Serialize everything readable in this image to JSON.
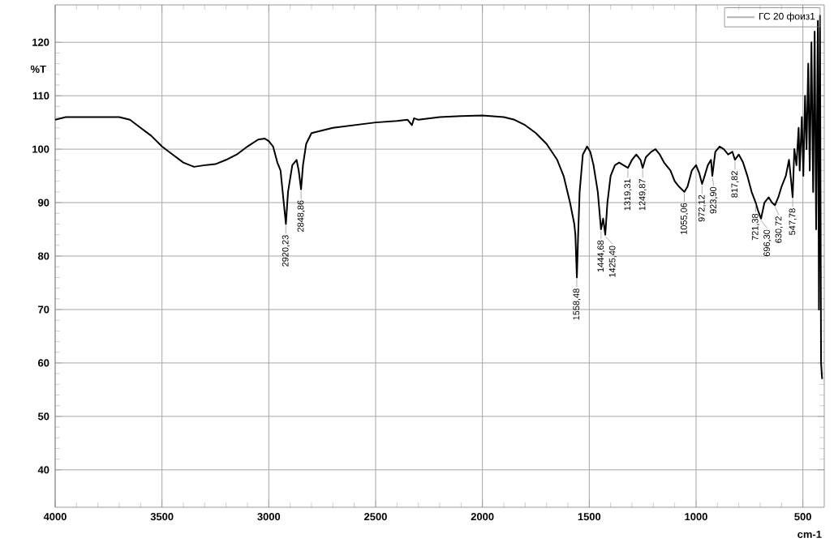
{
  "chart_data": {
    "type": "line",
    "xlabel": "cm-1",
    "ylabel": "%T",
    "xlim": [
      4000,
      400
    ],
    "ylim": [
      33,
      127
    ],
    "xticks": [
      4000,
      3500,
      3000,
      2500,
      2000,
      1500,
      1000,
      500
    ],
    "yticks": [
      40,
      50,
      60,
      70,
      80,
      90,
      100,
      110,
      120
    ],
    "grid": true,
    "legend": "top right",
    "x": [
      4000,
      3950,
      3900,
      3800,
      3700,
      3650,
      3600,
      3550,
      3500,
      3450,
      3400,
      3350,
      3300,
      3250,
      3200,
      3150,
      3100,
      3050,
      3020,
      3000,
      2980,
      2960,
      2945,
      2930,
      2920,
      2910,
      2890,
      2870,
      2860,
      2849,
      2840,
      2825,
      2800,
      2700,
      2600,
      2500,
      2400,
      2350,
      2330,
      2320,
      2300,
      2200,
      2100,
      2000,
      1900,
      1850,
      1800,
      1750,
      1700,
      1650,
      1620,
      1590,
      1570,
      1565,
      1558,
      1552,
      1545,
      1530,
      1510,
      1495,
      1480,
      1460,
      1445,
      1435,
      1425,
      1415,
      1400,
      1380,
      1360,
      1340,
      1319,
      1300,
      1280,
      1260,
      1250,
      1235,
      1210,
      1190,
      1170,
      1150,
      1120,
      1100,
      1080,
      1055,
      1040,
      1020,
      1000,
      985,
      972,
      960,
      945,
      930,
      924,
      910,
      890,
      870,
      850,
      830,
      818,
      800,
      780,
      760,
      740,
      721,
      710,
      696,
      680,
      660,
      645,
      631,
      615,
      600,
      580,
      565,
      555,
      548,
      540,
      530,
      520,
      515,
      505,
      498,
      490,
      483,
      475,
      468,
      460,
      452,
      445,
      438,
      430,
      425,
      420,
      415,
      410
    ],
    "series": [
      {
        "name": "ГС 20 фоиз1",
        "color": "#000000",
        "values": [
          105.5,
          106,
          106,
          106,
          106,
          105.5,
          104,
          102.5,
          100.5,
          99,
          97.5,
          96.7,
          97,
          97.2,
          98,
          99,
          100.5,
          101.8,
          102,
          101.5,
          100.5,
          97.5,
          96,
          90,
          86,
          92,
          97,
          98,
          96,
          92.5,
          97,
          101,
          103,
          104,
          104.5,
          105,
          105.3,
          105.5,
          104.5,
          105.8,
          105.5,
          106,
          106.2,
          106.3,
          106,
          105.5,
          104.5,
          103,
          101,
          98,
          95,
          90,
          86,
          84,
          76,
          84,
          92,
          99,
          100.5,
          99.5,
          97,
          92,
          85,
          87,
          84,
          90,
          95,
          97,
          97.5,
          97,
          96.5,
          98,
          99,
          98,
          96.5,
          98.5,
          99.5,
          100,
          99,
          97.5,
          96,
          94,
          93,
          92,
          93,
          96,
          97,
          95.5,
          93.5,
          95,
          97,
          98,
          95,
          99.5,
          100.5,
          100,
          99,
          99.5,
          98,
          99,
          97.5,
          95,
          92,
          90,
          88.5,
          87,
          90,
          91,
          90,
          89.5,
          91,
          93,
          95,
          98,
          94,
          91,
          100,
          97,
          104,
          96,
          106,
          95,
          110,
          100,
          116,
          96,
          120,
          92,
          122,
          85,
          124,
          70,
          125,
          60,
          57
        ]
      }
    ],
    "annotations": [
      {
        "text": "2920,23",
        "x": 2920.23,
        "y": 86
      },
      {
        "text": "2848,86",
        "x": 2848.86,
        "y": 92.5
      },
      {
        "text": "1558,48",
        "x": 1558.48,
        "y": 76
      },
      {
        "text": "1444,68",
        "x": 1444.68,
        "y": 85
      },
      {
        "text": "1425,40",
        "x": 1425.4,
        "y": 84
      },
      {
        "text": "1319,31",
        "x": 1319.31,
        "y": 96.5
      },
      {
        "text": "1249,87",
        "x": 1249.87,
        "y": 96.5
      },
      {
        "text": "1055,06",
        "x": 1055.06,
        "y": 92
      },
      {
        "text": "972,12",
        "x": 972.12,
        "y": 93.5
      },
      {
        "text": "923,90",
        "x": 923.9,
        "y": 95
      },
      {
        "text": "817,82",
        "x": 817.82,
        "y": 98
      },
      {
        "text": "721,38",
        "x": 721.38,
        "y": 90
      },
      {
        "text": "696,30",
        "x": 696.3,
        "y": 87
      },
      {
        "text": "630,72",
        "x": 630.72,
        "y": 89.5
      },
      {
        "text": "547,78",
        "x": 547.78,
        "y": 91
      }
    ]
  }
}
